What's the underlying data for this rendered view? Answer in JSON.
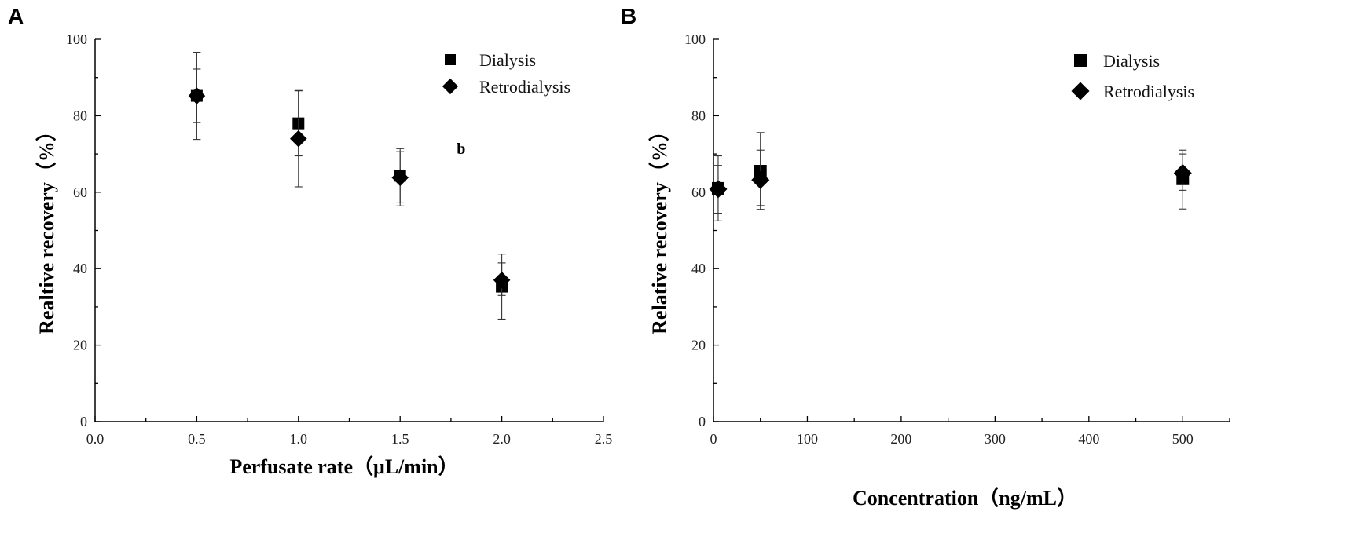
{
  "chart_data": [
    {
      "panel_label": "A",
      "type": "scatter",
      "xlabel": "Perfusate rate（μL/min）",
      "ylabel": "Realtive recovery（%）",
      "xlim": [
        0.0,
        2.5
      ],
      "ylim": [
        0,
        100
      ],
      "x_ticks": [
        0.0,
        0.5,
        1.0,
        1.5,
        2.0,
        2.5
      ],
      "x_tick_labels": [
        "0.0",
        "0.5",
        "1.0",
        "1.5",
        "2.0",
        "2.5"
      ],
      "y_ticks": [
        0,
        20,
        40,
        60,
        80,
        100
      ],
      "y_tick_labels": [
        "0",
        "20",
        "40",
        "60",
        "80",
        "100"
      ],
      "legend_position": "top-right",
      "annotations": [
        {
          "text": "b",
          "x": 1.8,
          "y": 70
        }
      ],
      "series": [
        {
          "name": "Dialysis",
          "marker": "square",
          "points": [
            {
              "x": 0.5,
              "y": 85.2,
              "err_low": 73.8,
              "err_high": 96.6
            },
            {
              "x": 1.0,
              "y": 78.0,
              "err_low": 69.5,
              "err_high": 86.5
            },
            {
              "x": 1.5,
              "y": 64.3,
              "err_low": 57.2,
              "err_high": 71.4
            },
            {
              "x": 2.0,
              "y": 35.3,
              "err_low": 26.8,
              "err_high": 43.8
            }
          ]
        },
        {
          "name": "Retrodialysis",
          "marker": "diamond",
          "points": [
            {
              "x": 0.5,
              "y": 85.2,
              "err_low": 78.2,
              "err_high": 92.2
            },
            {
              "x": 1.0,
              "y": 74.0,
              "err_low": 61.4,
              "err_high": 86.6
            },
            {
              "x": 1.5,
              "y": 63.8,
              "err_low": 56.4,
              "err_high": 70.6
            },
            {
              "x": 2.0,
              "y": 37.0,
              "err_low": 33.0,
              "err_high": 41.5
            }
          ]
        }
      ]
    },
    {
      "panel_label": "B",
      "type": "scatter",
      "xlabel": "Concentration（ng/mL）",
      "ylabel": "Relative recovery（%）",
      "xlim": [
        0,
        550
      ],
      "ylim": [
        0,
        100
      ],
      "x_ticks": [
        0,
        100,
        200,
        300,
        400,
        500
      ],
      "x_tick_labels": [
        "0",
        "100",
        "200",
        "300",
        "400",
        "500"
      ],
      "y_ticks": [
        0,
        20,
        40,
        60,
        80,
        100
      ],
      "y_tick_labels": [
        "0",
        "20",
        "40",
        "60",
        "80",
        "100"
      ],
      "legend_position": "top-right",
      "annotations": [],
      "series": [
        {
          "name": "Dialysis",
          "marker": "square",
          "points": [
            {
              "x": 5,
              "y": 61.0,
              "err_low": 52.5,
              "err_high": 69.5
            },
            {
              "x": 50,
              "y": 65.5,
              "err_low": 55.5,
              "err_high": 75.6
            },
            {
              "x": 500,
              "y": 63.5,
              "err_low": 55.6,
              "err_high": 71.0
            }
          ]
        },
        {
          "name": "Retrodialysis",
          "marker": "diamond",
          "points": [
            {
              "x": 5,
              "y": 60.8,
              "err_low": 54.5,
              "err_high": 67.0
            },
            {
              "x": 50,
              "y": 63.2,
              "err_low": 56.5,
              "err_high": 71.0
            },
            {
              "x": 500,
              "y": 65.0,
              "err_low": 60.5,
              "err_high": 70.0
            }
          ]
        }
      ]
    }
  ]
}
